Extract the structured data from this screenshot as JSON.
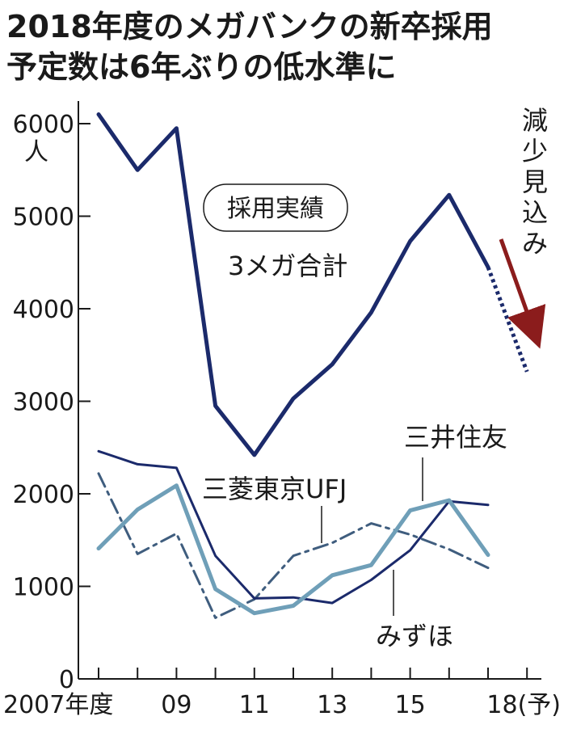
{
  "chart_data": {
    "type": "line",
    "title_lines": [
      "2018年度のメガバンクの新卒採用",
      "予定数は6年ぶりの低水準に"
    ],
    "y_unit": "人",
    "ylim": [
      0,
      6000
    ],
    "y_ticks": [
      0,
      1000,
      2000,
      3000,
      4000,
      5000,
      6000
    ],
    "x_categories": [
      2007,
      2008,
      2009,
      2010,
      2011,
      2012,
      2013,
      2014,
      2015,
      2016,
      2017,
      2018
    ],
    "x_tick_labels": [
      {
        "x": 2007,
        "label": "2007年度"
      },
      {
        "x": 2009,
        "label": "09"
      },
      {
        "x": 2011,
        "label": "11"
      },
      {
        "x": 2013,
        "label": "13"
      },
      {
        "x": 2015,
        "label": "15"
      },
      {
        "x": 2018,
        "label": "18(予)"
      }
    ],
    "grid": false,
    "annotation_box": "採用実績",
    "annotation_right": "減少見込み",
    "series": [
      {
        "name": "3メガ合計",
        "color": "#1b2a6b",
        "style": "thick-solid",
        "x": [
          2007,
          2008,
          2009,
          2010,
          2011,
          2012,
          2013,
          2014,
          2015,
          2016,
          2017
        ],
        "values": [
          6100,
          5500,
          5950,
          2950,
          2420,
          3030,
          3400,
          3960,
          4730,
          5230,
          4450
        ],
        "forecast_x": [
          2017,
          2018
        ],
        "forecast_values": [
          4450,
          3320
        ]
      },
      {
        "name": "三菱東京UFJ",
        "color": "#1b2a6b",
        "style": "thin-solid",
        "x": [
          2007,
          2008,
          2009,
          2010,
          2011,
          2012,
          2013,
          2014,
          2015,
          2016,
          2017
        ],
        "values": [
          2460,
          2320,
          2280,
          1330,
          870,
          880,
          820,
          1070,
          1390,
          1920,
          1880
        ]
      },
      {
        "name": "みずほ",
        "color": "#3f5d7e",
        "style": "dash-dot",
        "x": [
          2007,
          2008,
          2009,
          2010,
          2011,
          2012,
          2013,
          2014,
          2015,
          2016,
          2017
        ],
        "values": [
          2220,
          1350,
          1570,
          660,
          860,
          1330,
          1470,
          1680,
          1560,
          1400,
          1200
        ]
      },
      {
        "name": "三井住友",
        "color": "#6f9fb8",
        "style": "thick-solid",
        "x": [
          2007,
          2008,
          2009,
          2010,
          2011,
          2012,
          2013,
          2014,
          2015,
          2016,
          2017
        ],
        "values": [
          1410,
          1830,
          2090,
          970,
          710,
          790,
          1120,
          1230,
          1820,
          1930,
          1340
        ]
      }
    ],
    "arrow_color": "#8b1c1c"
  }
}
